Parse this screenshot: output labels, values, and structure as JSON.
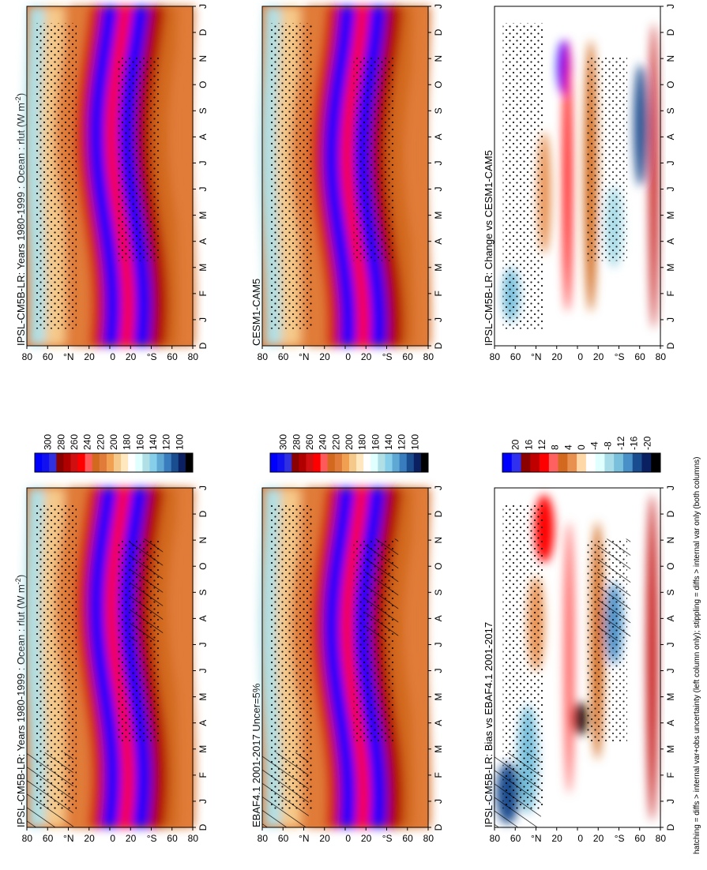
{
  "figure": {
    "footnote": "hatching = diffs > internal var+obs uncertainty (left column only); stippling = diffs > internal var only (both columns)"
  },
  "colors": {
    "abs_scale": [
      "#0000ff",
      "#1010f0",
      "#3030e0",
      "#8b0000",
      "#b00000",
      "#d01010",
      "#ff0000",
      "#ff5a5a",
      "#d2691e",
      "#e07b39",
      "#f0a050",
      "#f5c98a",
      "#ffe8c0",
      "#ffffff",
      "#e0ffff",
      "#b0e0e6",
      "#87ceeb",
      "#5fa8d3",
      "#3a7dbf",
      "#1a4d8f",
      "#0a2060",
      "#000000"
    ],
    "diff_scale": [
      "#0000ff",
      "#3030f0",
      "#8b0000",
      "#c00000",
      "#ff0000",
      "#ff6060",
      "#d2691e",
      "#e89050",
      "#ffd8a8",
      "#ffffff",
      "#e0ffff",
      "#a8dce8",
      "#78c0dc",
      "#4a90c8",
      "#1a4d8f",
      "#0a2060",
      "#000000"
    ]
  },
  "chart_data": [
    {
      "type": "heatmap",
      "panel": "top-left",
      "title": "IPSL-CM5B-LR: Years 1980-1999 : Ocean : rlut (W m",
      "title_sup": "-2",
      "title_end": ")",
      "x_ticks": [
        "D",
        "J",
        "F",
        "M",
        "A",
        "M",
        "J",
        "J",
        "A",
        "S",
        "O",
        "N",
        "D",
        "J"
      ],
      "y_ticks": [
        "80",
        "60",
        "°N",
        "20",
        "0",
        "20",
        "°S",
        "60",
        "80"
      ],
      "colorbar_ticks": [
        "300",
        "280",
        "260",
        "240",
        "220",
        "200",
        "180",
        "160",
        "140",
        "120",
        "100"
      ],
      "colorbar_range": [
        100,
        300
      ],
      "hatching": true,
      "stippling": true
    },
    {
      "type": "heatmap",
      "panel": "top-right",
      "title": "IPSL-CM5B-LR: Years 1980-1999 : Ocean : rlut (W m",
      "title_sup": "-2",
      "title_end": ")",
      "x_ticks": [
        "D",
        "J",
        "F",
        "M",
        "A",
        "M",
        "J",
        "J",
        "A",
        "S",
        "O",
        "N",
        "D",
        "J"
      ],
      "y_ticks": [
        "80",
        "60",
        "°N",
        "20",
        "0",
        "20",
        "°S",
        "60",
        "80"
      ],
      "colorbar_ticks": [
        "300",
        "280",
        "260",
        "240",
        "220",
        "200",
        "180",
        "160",
        "140",
        "120",
        "100"
      ],
      "colorbar_range": [
        100,
        300
      ],
      "hatching": false,
      "stippling": true
    },
    {
      "type": "heatmap",
      "panel": "middle-left",
      "title": "EBAF4.1 2001-2017 Uncer=5%",
      "x_ticks": [
        "D",
        "J",
        "F",
        "M",
        "A",
        "M",
        "J",
        "J",
        "A",
        "S",
        "O",
        "N",
        "D",
        "J"
      ],
      "y_ticks": [
        "80",
        "60",
        "°N",
        "20",
        "0",
        "20",
        "°S",
        "60",
        "80"
      ],
      "colorbar_ticks": [
        "300",
        "280",
        "260",
        "240",
        "220",
        "200",
        "180",
        "160",
        "140",
        "120",
        "100"
      ],
      "colorbar_range": [
        100,
        300
      ],
      "hatching": true,
      "stippling": true
    },
    {
      "type": "heatmap",
      "panel": "middle-right",
      "title": "CESM1-CAM5",
      "x_ticks": [
        "D",
        "J",
        "F",
        "M",
        "A",
        "M",
        "J",
        "J",
        "A",
        "S",
        "O",
        "N",
        "D",
        "J"
      ],
      "y_ticks": [
        "80",
        "60",
        "°N",
        "20",
        "0",
        "20",
        "°S",
        "60",
        "80"
      ],
      "colorbar_ticks": [
        "300",
        "280",
        "260",
        "240",
        "220",
        "200",
        "180",
        "160",
        "140",
        "120",
        "100"
      ],
      "colorbar_range": [
        100,
        300
      ],
      "hatching": false,
      "stippling": true
    },
    {
      "type": "heatmap",
      "panel": "bottom-left",
      "title": "IPSL-CM5B-LR: Bias vs EBAF4.1 2001-2017",
      "x_ticks": [
        "D",
        "J",
        "F",
        "M",
        "A",
        "M",
        "J",
        "J",
        "A",
        "S",
        "O",
        "N",
        "D",
        "J"
      ],
      "y_ticks": [
        "80",
        "60",
        "°N",
        "20",
        "0",
        "20",
        "°S",
        "60",
        "80"
      ],
      "colorbar_ticks": [
        "20",
        "16",
        "12",
        "8",
        "4",
        "0",
        "-4",
        "-8",
        "-12",
        "-16",
        "-20"
      ],
      "colorbar_range": [
        -20,
        20
      ],
      "hatching": true,
      "stippling": true
    },
    {
      "type": "heatmap",
      "panel": "bottom-right",
      "title": "IPSL-CM5B-LR: Change vs CESM1-CAM5",
      "x_ticks": [
        "D",
        "J",
        "F",
        "M",
        "A",
        "M",
        "J",
        "J",
        "A",
        "S",
        "O",
        "N",
        "D",
        "J"
      ],
      "y_ticks": [
        "80",
        "60",
        "°N",
        "20",
        "0",
        "20",
        "°S",
        "60",
        "80"
      ],
      "colorbar_ticks": [
        "20",
        "16",
        "12",
        "8",
        "4",
        "0",
        "-4",
        "-8",
        "-12",
        "-16",
        "-20"
      ],
      "colorbar_range": [
        -20,
        20
      ],
      "hatching": false,
      "stippling": true
    }
  ]
}
